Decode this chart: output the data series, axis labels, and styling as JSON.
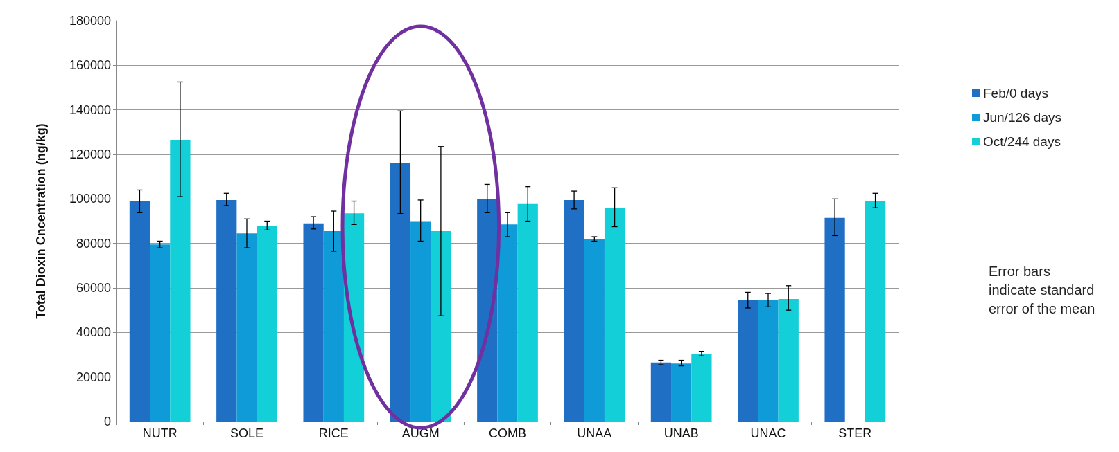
{
  "chart_data": {
    "type": "bar",
    "ylabel": "Total Dioxin Cncentration (ng/kg)",
    "categories": [
      "NUTR",
      "SOLE",
      "RICE",
      "AUGM",
      "COMB",
      "UNAA",
      "UNAB",
      "UNAC",
      "STER"
    ],
    "series": [
      {
        "name": "Feb/0 days",
        "color": "#1f6fc5",
        "values": [
          99000,
          99500,
          89000,
          116000,
          100000,
          99500,
          26500,
          54500,
          91500
        ],
        "errors": [
          [
            94000,
            104000
          ],
          [
            97000,
            102500
          ],
          [
            86500,
            92000
          ],
          [
            93500,
            139500
          ],
          [
            94000,
            106500
          ],
          [
            95500,
            103500
          ],
          [
            25500,
            27500
          ],
          [
            51000,
            58000
          ],
          [
            83500,
            100000
          ]
        ]
      },
      {
        "name": "Jun/126 days",
        "color": "#0e9bd8",
        "values": [
          79500,
          84500,
          85500,
          90000,
          88500,
          82000,
          26000,
          54500,
          null
        ],
        "errors": [
          [
            78000,
            81000
          ],
          [
            78000,
            91000
          ],
          [
            76500,
            94500
          ],
          [
            81000,
            99500
          ],
          [
            83000,
            94000
          ],
          [
            81000,
            83000
          ],
          [
            25000,
            27500
          ],
          [
            51500,
            57500
          ],
          null
        ]
      },
      {
        "name": "Oct/244 days",
        "color": "#12cfd8",
        "values": [
          126500,
          88000,
          93500,
          85500,
          98000,
          96000,
          30500,
          55000,
          99000
        ],
        "errors": [
          [
            101000,
            152500
          ],
          [
            86000,
            90000
          ],
          [
            88500,
            99000
          ],
          [
            47500,
            123500
          ],
          [
            90000,
            105500
          ],
          [
            87500,
            105000
          ],
          [
            29500,
            31500
          ],
          [
            50000,
            61000
          ],
          [
            96000,
            102500
          ]
        ]
      }
    ],
    "ylim": [
      0,
      180000
    ],
    "yticks": [
      0,
      20000,
      40000,
      60000,
      80000,
      100000,
      120000,
      140000,
      160000,
      180000
    ],
    "grid": "y",
    "legend": "right",
    "annotations": [
      "Error bars indicate standard error of the mean"
    ]
  }
}
